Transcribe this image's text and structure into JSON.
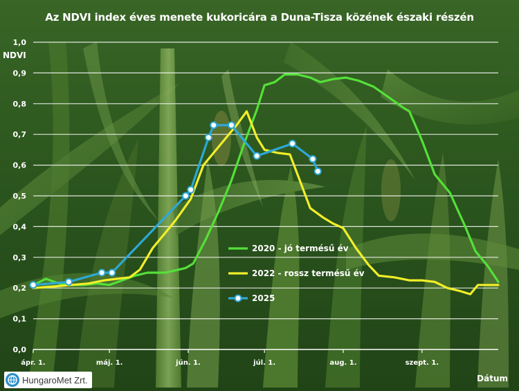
{
  "chart_data": {
    "type": "line",
    "title": "Az NDVI index éves menete kukoricára a Duna-Tisza közének északi részén",
    "ylabel": "NDVI",
    "xlabel": "Dátum",
    "ylim": [
      0,
      1.0
    ],
    "y_ticks": [
      "0,0",
      "0,1",
      "0,2",
      "0,3",
      "0,4",
      "0,5",
      "0,6",
      "0,7",
      "0,8",
      "0,9",
      "1,0"
    ],
    "x_ticks": [
      {
        "label": "ápr. 1.",
        "day": 0
      },
      {
        "label": "máj. 1.",
        "day": 30
      },
      {
        "label": "jún. 1.",
        "day": 61
      },
      {
        "label": "júl. 1.",
        "day": 91
      },
      {
        "label": "aug. 1.",
        "day": 122
      },
      {
        "label": "szept. 1.",
        "day": 153
      }
    ],
    "xlim": [
      0,
      183
    ],
    "grid": true,
    "legend": "center-right",
    "series": [
      {
        "name": "2020 - jó termésű év",
        "color": "#55e03a",
        "markers": false,
        "points": [
          [
            0,
            0.21
          ],
          [
            5,
            0.23
          ],
          [
            10,
            0.215
          ],
          [
            15,
            0.21
          ],
          [
            20,
            0.21
          ],
          [
            25,
            0.215
          ],
          [
            30,
            0.21
          ],
          [
            35,
            0.225
          ],
          [
            40,
            0.24
          ],
          [
            45,
            0.25
          ],
          [
            52,
            0.25
          ],
          [
            60,
            0.265
          ],
          [
            63,
            0.28
          ],
          [
            68,
            0.36
          ],
          [
            73,
            0.45
          ],
          [
            78,
            0.55
          ],
          [
            83,
            0.67
          ],
          [
            88,
            0.78
          ],
          [
            91,
            0.86
          ],
          [
            95,
            0.87
          ],
          [
            99,
            0.895
          ],
          [
            104,
            0.895
          ],
          [
            109,
            0.885
          ],
          [
            113,
            0.87
          ],
          [
            118,
            0.88
          ],
          [
            123,
            0.885
          ],
          [
            128,
            0.875
          ],
          [
            134,
            0.855
          ],
          [
            140,
            0.82
          ],
          [
            146,
            0.785
          ],
          [
            148,
            0.775
          ],
          [
            153,
            0.68
          ],
          [
            158,
            0.57
          ],
          [
            164,
            0.51
          ],
          [
            170,
            0.4
          ],
          [
            174,
            0.32
          ],
          [
            179,
            0.27
          ],
          [
            183,
            0.22
          ]
        ]
      },
      {
        "name": "2022 - rossz termésű év",
        "color": "#f2ee2a",
        "markers": false,
        "points": [
          [
            0,
            0.2
          ],
          [
            8,
            0.205
          ],
          [
            15,
            0.21
          ],
          [
            22,
            0.215
          ],
          [
            28,
            0.225
          ],
          [
            33,
            0.23
          ],
          [
            38,
            0.235
          ],
          [
            42,
            0.26
          ],
          [
            47,
            0.33
          ],
          [
            52,
            0.38
          ],
          [
            56,
            0.42
          ],
          [
            62,
            0.49
          ],
          [
            67,
            0.6
          ],
          [
            72,
            0.65
          ],
          [
            76,
            0.69
          ],
          [
            80,
            0.73
          ],
          [
            84,
            0.775
          ],
          [
            88,
            0.69
          ],
          [
            91,
            0.65
          ],
          [
            96,
            0.64
          ],
          [
            101,
            0.635
          ],
          [
            104,
            0.57
          ],
          [
            109,
            0.46
          ],
          [
            114,
            0.43
          ],
          [
            118,
            0.41
          ],
          [
            122,
            0.395
          ],
          [
            127,
            0.33
          ],
          [
            132,
            0.275
          ],
          [
            136,
            0.24
          ],
          [
            142,
            0.235
          ],
          [
            148,
            0.225
          ],
          [
            153,
            0.225
          ],
          [
            158,
            0.22
          ],
          [
            163,
            0.2
          ],
          [
            168,
            0.19
          ],
          [
            172,
            0.18
          ],
          [
            175,
            0.21
          ],
          [
            179,
            0.21
          ],
          [
            183,
            0.21
          ]
        ]
      },
      {
        "name": "2025",
        "color": "#2ea8d6",
        "markers": true,
        "points": [
          [
            0,
            0.21
          ],
          [
            14,
            0.22
          ],
          [
            27,
            0.25
          ],
          [
            31,
            0.25
          ],
          [
            60,
            0.5
          ],
          [
            62,
            0.52
          ],
          [
            69,
            0.69
          ],
          [
            71,
            0.73
          ],
          [
            78,
            0.73
          ],
          [
            88,
            0.63
          ],
          [
            102,
            0.67
          ],
          [
            110,
            0.62
          ],
          [
            112,
            0.58
          ]
        ]
      }
    ]
  },
  "branding": {
    "logo_text": "HungaroMet Zrt."
  }
}
